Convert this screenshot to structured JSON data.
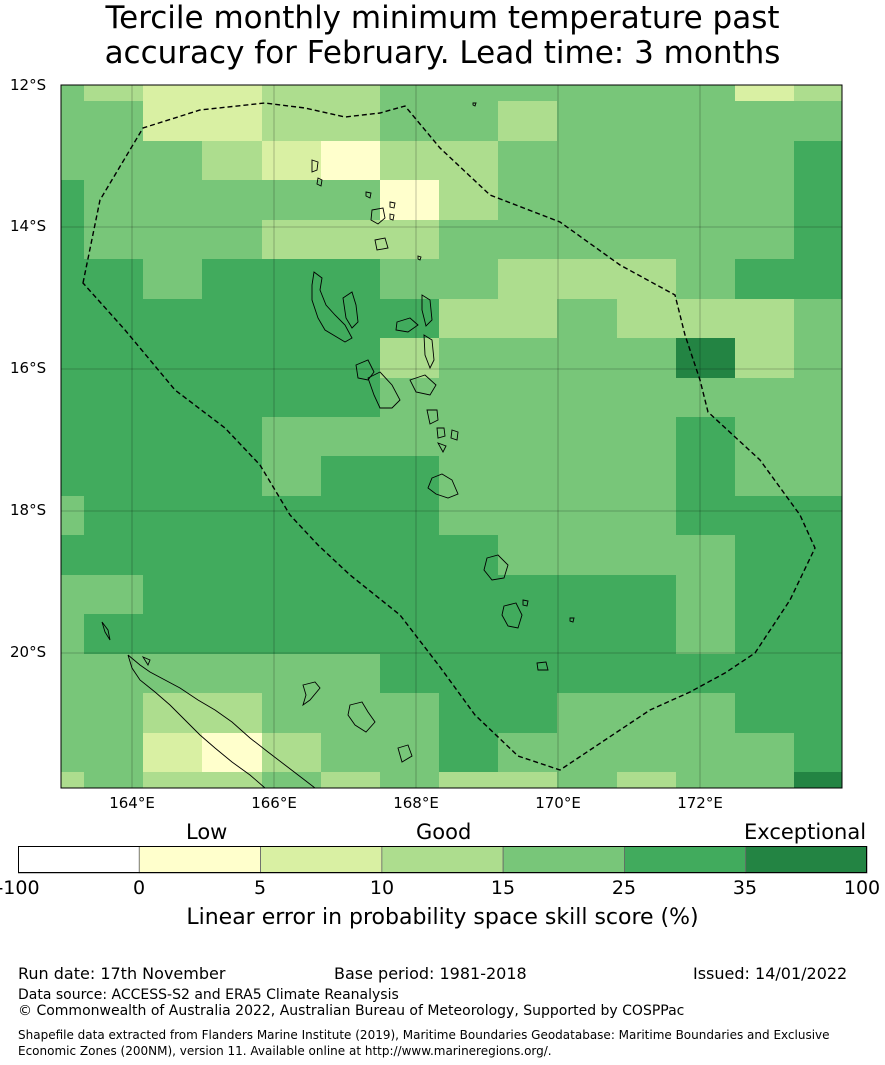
{
  "title": {
    "line1": "Tercile monthly minimum temperature past",
    "line2": "accuracy for February. Lead time: 3 months"
  },
  "map": {
    "lat_labels": [
      "12°S",
      "14°S",
      "16°S",
      "18°S",
      "20°S"
    ],
    "lon_labels": [
      "164°E",
      "166°E",
      "168°E",
      "170°E",
      "172°E"
    ],
    "lon_range": [
      163,
      174
    ],
    "lat_range": [
      -21.9,
      -12
    ],
    "region": "Vanuatu EEZ",
    "colors": {
      "c0_5": "#ffffcc",
      "c5_10": "#d9f0a3",
      "c10_15": "#addd8e",
      "c15_25": "#78c679",
      "c25_35": "#41ab5d",
      "c35_100": "#238443"
    }
  },
  "colorbar": {
    "category_labels": [
      "Low",
      "Good",
      "Exceptional"
    ],
    "ticks": [
      "-100",
      "0",
      "5",
      "10",
      "15",
      "25",
      "35",
      "100"
    ],
    "colors": [
      "#ffffff",
      "#ffffcc",
      "#d9f0a3",
      "#addd8e",
      "#78c679",
      "#41ab5d",
      "#238443"
    ],
    "title": "Linear error in probability space skill score (%)"
  },
  "footer": {
    "run_date": "Run date: 17th November",
    "base_period": "Base period: 1981-2018",
    "issued": "Issued: 14/01/2022",
    "data_source": "Data source: ACCESS-S2 and ERA5 Climate Reanalysis",
    "copyright": "© Commonwealth of Australia 2022, Australian Bureau of Meteorology, Supported by COSPPac",
    "shapefile_line1": "Shapefile data extracted from Flanders Marine Institute (2019), Maritime Boundaries Geodatabase: Maritime Boundaries and Exclusive",
    "shapefile_line2": "Economic Zones (200NM), version 11. Available online at http://www.marineregions.org/."
  }
}
